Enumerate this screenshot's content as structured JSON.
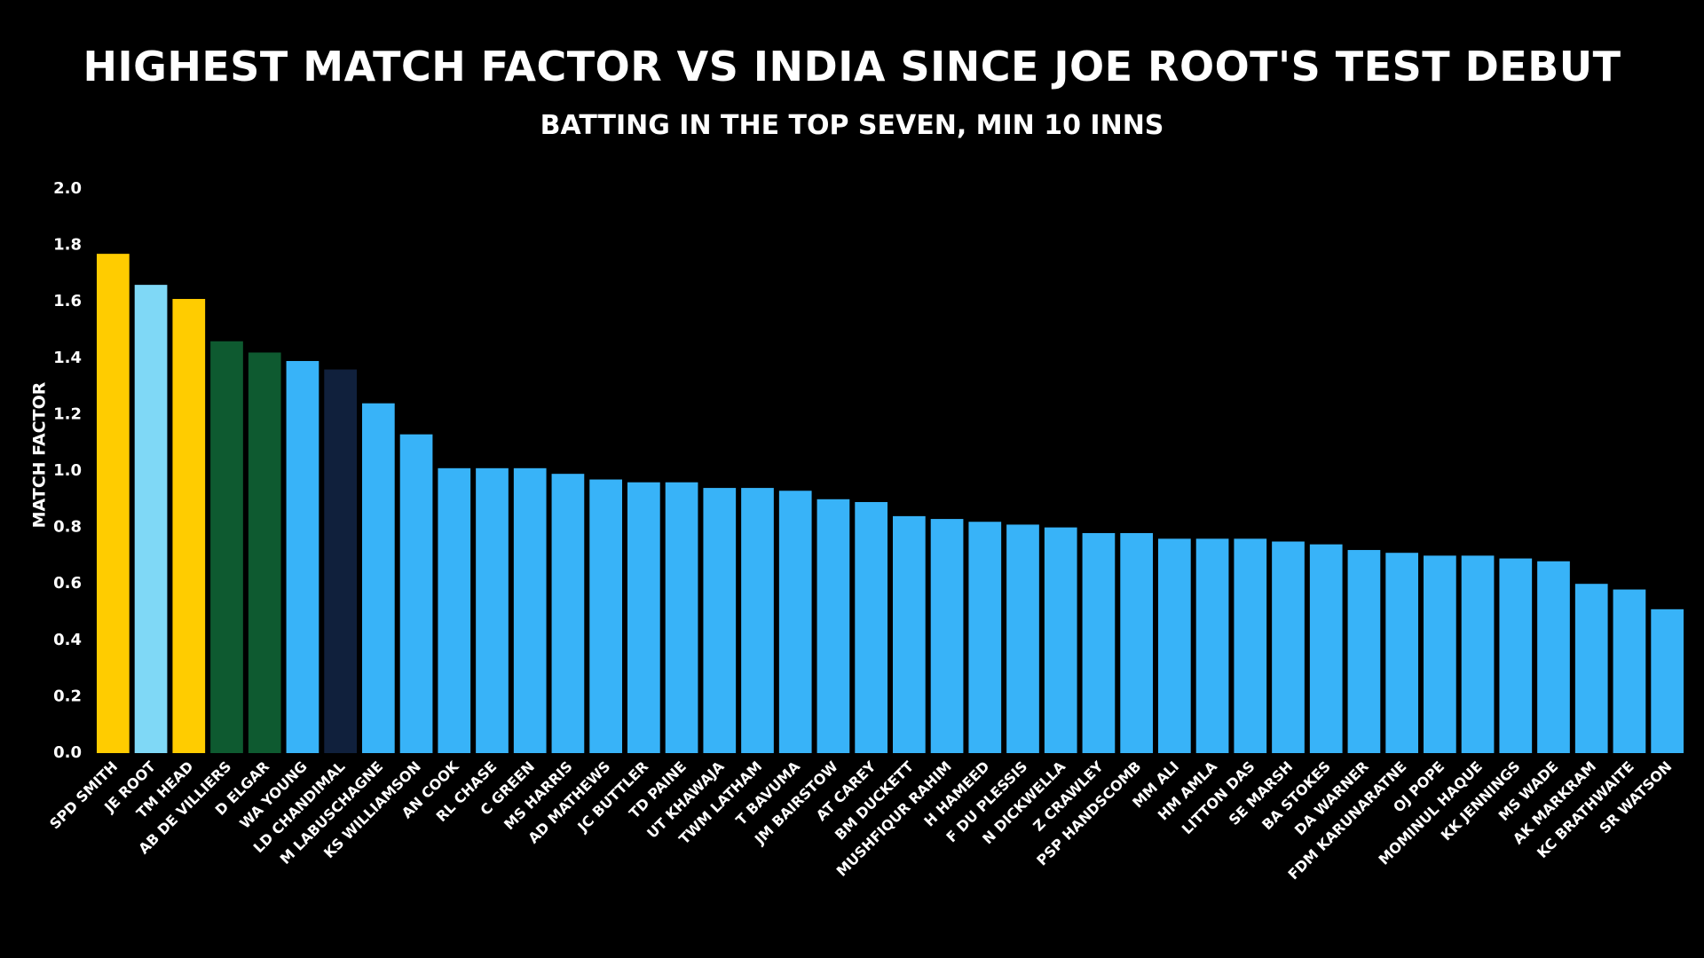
{
  "chart_data": {
    "type": "bar",
    "title": "HIGHEST MATCH FACTOR VS INDIA SINCE JOE ROOT'S TEST DEBUT",
    "subtitle": "BATTING IN THE TOP SEVEN, MIN 10 INNS",
    "xlabel": "",
    "ylabel": "MATCH FACTOR",
    "ylim": [
      0,
      2.0
    ],
    "yticks": [
      "0.0",
      "0.2",
      "0.4",
      "0.6",
      "0.8",
      "1.0",
      "1.2",
      "1.4",
      "1.6",
      "1.8",
      "2.0"
    ],
    "grid": false,
    "legend": "none",
    "categories": [
      "SPD SMITH",
      "JE ROOT",
      "TM HEAD",
      "AB DE VILLIERS",
      "D ELGAR",
      "WA YOUNG",
      "LD CHANDIMAL",
      "M LABUSCHAGNE",
      "KS WILLIAMSON",
      "AN COOK",
      "RL CHASE",
      "C GREEN",
      "MS HARRIS",
      "AD MATHEWS",
      "JC BUTTLER",
      "TD PAINE",
      "UT KHAWAJA",
      "TWM LATHAM",
      "T BAVUMA",
      "JM BAIRSTOW",
      "AT CAREY",
      "BM DUCKETT",
      "MUSHFIQUR RAHIM",
      "H HAMEED",
      "F DU PLESSIS",
      "N DICKWELLA",
      "Z CRAWLEY",
      "PSP HANDSCOMB",
      "MM ALI",
      "HM AMLA",
      "LITTON DAS",
      "SE MARSH",
      "BA STOKES",
      "DA WARNER",
      "FDM KARUNARATNE",
      "OJ POPE",
      "MOMINUL HAQUE",
      "KK JENNINGS",
      "MS WADE",
      "AK MARKRAM",
      "KC BRATHWAITE",
      "SR WATSON"
    ],
    "values": [
      1.77,
      1.66,
      1.61,
      1.46,
      1.42,
      1.39,
      1.36,
      1.24,
      1.13,
      1.01,
      1.01,
      1.01,
      0.99,
      0.97,
      0.96,
      0.96,
      0.94,
      0.94,
      0.93,
      0.9,
      0.89,
      0.84,
      0.83,
      0.82,
      0.81,
      0.8,
      0.78,
      0.78,
      0.76,
      0.76,
      0.76,
      0.75,
      0.74,
      0.72,
      0.71,
      0.7,
      0.7,
      0.69,
      0.68,
      0.6,
      0.58,
      0.51
    ],
    "bar_colors": [
      "#ffcc00",
      "#7fd8f6",
      "#ffcc00",
      "#0e5a30",
      "#0e5a30",
      "#38b3f8",
      "#10203c",
      "#38b3f8",
      "#38b3f8",
      "#38b3f8",
      "#38b3f8",
      "#38b3f8",
      "#38b3f8",
      "#38b3f8",
      "#38b3f8",
      "#38b3f8",
      "#38b3f8",
      "#38b3f8",
      "#38b3f8",
      "#38b3f8",
      "#38b3f8",
      "#38b3f8",
      "#38b3f8",
      "#38b3f8",
      "#38b3f8",
      "#38b3f8",
      "#38b3f8",
      "#38b3f8",
      "#38b3f8",
      "#38b3f8",
      "#38b3f8",
      "#38b3f8",
      "#38b3f8",
      "#38b3f8",
      "#38b3f8",
      "#38b3f8",
      "#38b3f8",
      "#38b3f8",
      "#38b3f8",
      "#38b3f8",
      "#38b3f8",
      "#38b3f8"
    ],
    "background_color": "#000000",
    "text_color": "#ffffff"
  }
}
